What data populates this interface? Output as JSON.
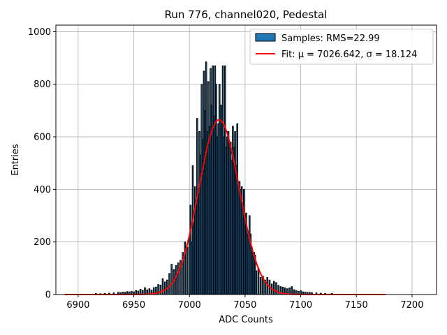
{
  "chart_data": {
    "type": "bar",
    "title": "Run 776, channel020, Pedestal",
    "xlabel": "ADC Counts",
    "ylabel": "Entries",
    "xlim": [
      6880,
      7222
    ],
    "ylim": [
      0,
      1025
    ],
    "xticks": [
      6900,
      6950,
      7000,
      7050,
      7100,
      7150,
      7200
    ],
    "yticks": [
      0,
      200,
      400,
      600,
      800,
      1000
    ],
    "grid": true,
    "legend_position": "top-right",
    "bar_color": "#1f77b4",
    "bar_edge_color": "#000000",
    "fit_color": "#ff0000",
    "legend": {
      "samples_label": "Samples: RMS=22.99",
      "fit_label": "Fit: μ = 7026.642, σ = 18.124"
    },
    "fit": {
      "mu": 7026.642,
      "sigma": 18.124,
      "amplitude": 665,
      "x_range": [
        6888,
        7176
      ]
    },
    "histogram": {
      "x": [
        6916,
        6920,
        6924,
        6928,
        6932,
        6936,
        6938,
        6940,
        6942,
        6944,
        6946,
        6948,
        6950,
        6952,
        6954,
        6956,
        6958,
        6960,
        6962,
        6964,
        6966,
        6968,
        6970,
        6972,
        6974,
        6976,
        6978,
        6980,
        6982,
        6984,
        6986,
        6988,
        6990,
        6992,
        6994,
        6996,
        6998,
        7000,
        7001,
        7002,
        7003,
        7004,
        7005,
        7006,
        7007,
        7008,
        7009,
        7010,
        7011,
        7012,
        7013,
        7014,
        7015,
        7016,
        7017,
        7018,
        7019,
        7020,
        7021,
        7022,
        7023,
        7024,
        7025,
        7026,
        7027,
        7028,
        7029,
        7030,
        7031,
        7032,
        7033,
        7034,
        7035,
        7036,
        7037,
        7038,
        7039,
        7040,
        7041,
        7042,
        7043,
        7044,
        7045,
        7046,
        7047,
        7048,
        7049,
        7050,
        7051,
        7052,
        7053,
        7054,
        7055,
        7056,
        7057,
        7058,
        7059,
        7060,
        7062,
        7064,
        7066,
        7068,
        7070,
        7072,
        7074,
        7076,
        7078,
        7080,
        7082,
        7084,
        7086,
        7088,
        7090,
        7092,
        7094,
        7096,
        7098,
        7100,
        7102,
        7104,
        7106,
        7108,
        7110,
        7114,
        7118,
        7122,
        7128
      ],
      "values": [
        4,
        3,
        4,
        5,
        6,
        8,
        7,
        9,
        8,
        11,
        10,
        12,
        10,
        15,
        13,
        20,
        16,
        26,
        18,
        22,
        17,
        26,
        28,
        38,
        36,
        60,
        48,
        55,
        80,
        115,
        95,
        110,
        120,
        130,
        160,
        200,
        180,
        210,
        340,
        200,
        490,
        270,
        410,
        350,
        670,
        380,
        620,
        530,
        800,
        590,
        850,
        700,
        885,
        620,
        810,
        640,
        860,
        720,
        870,
        680,
        870,
        800,
        600,
        650,
        800,
        720,
        720,
        870,
        600,
        870,
        560,
        600,
        620,
        580,
        580,
        510,
        640,
        560,
        620,
        490,
        650,
        420,
        430,
        400,
        410,
        350,
        400,
        300,
        310,
        240,
        230,
        300,
        230,
        180,
        160,
        160,
        150,
        90,
        100,
        65,
        70,
        55,
        65,
        55,
        40,
        50,
        45,
        35,
        30,
        28,
        25,
        22,
        25,
        30,
        18,
        15,
        12,
        14,
        10,
        9,
        8,
        8,
        7,
        6,
        5,
        4,
        4
      ]
    }
  }
}
